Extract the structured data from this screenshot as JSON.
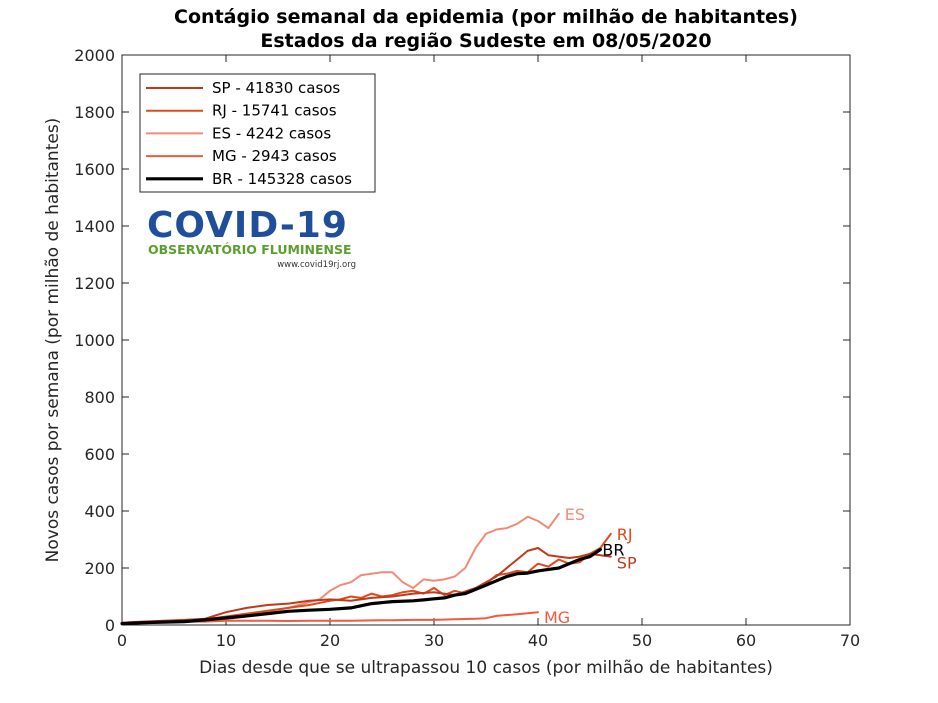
{
  "chart_data": {
    "type": "line",
    "title": "Contágio semanal da epidemia (por milhão de habitantes)",
    "subtitle": "Estados da região Sudeste  em 08/05/2020",
    "xlabel": "Dias desde que se ultrapassou 10 casos (por milhão de habitantes)",
    "ylabel": "Novos casos por semana (por milhão de habitantes)",
    "xlim": [
      0,
      70
    ],
    "ylim": [
      0,
      2000
    ],
    "xticks": [
      0,
      10,
      20,
      30,
      40,
      50,
      60,
      70
    ],
    "yticks": [
      0,
      200,
      400,
      600,
      800,
      1000,
      1200,
      1400,
      1600,
      1800,
      2000
    ],
    "grid": false,
    "legend_position": "top-left",
    "series": [
      {
        "name": "SP - 41830 casos",
        "end_label": "SP",
        "color": "#c0391b",
        "x": [
          0,
          2,
          4,
          6,
          8,
          10,
          12,
          14,
          16,
          18,
          20,
          22,
          24,
          26,
          28,
          30,
          32,
          34,
          36,
          38,
          39,
          40,
          41,
          42,
          43,
          44,
          45,
          46,
          47
        ],
        "y": [
          8,
          12,
          15,
          18,
          22,
          45,
          60,
          70,
          75,
          85,
          90,
          85,
          95,
          100,
          110,
          115,
          105,
          130,
          170,
          230,
          260,
          270,
          245,
          240,
          235,
          240,
          250,
          245,
          240
        ]
      },
      {
        "name": "RJ - 15741 casos",
        "end_label": "RJ",
        "color": "#e04a1a",
        "x": [
          0,
          2,
          4,
          6,
          8,
          10,
          12,
          14,
          16,
          18,
          20,
          21,
          22,
          23,
          24,
          25,
          26,
          27,
          28,
          29,
          30,
          31,
          32,
          33,
          34,
          35,
          36,
          37,
          38,
          39,
          40,
          41,
          42,
          43,
          44,
          45,
          46,
          47
        ],
        "y": [
          5,
          8,
          12,
          15,
          20,
          30,
          40,
          50,
          60,
          70,
          85,
          90,
          100,
          95,
          110,
          100,
          105,
          115,
          120,
          110,
          130,
          105,
          120,
          110,
          125,
          145,
          175,
          180,
          190,
          185,
          215,
          205,
          230,
          215,
          220,
          250,
          270,
          320
        ]
      },
      {
        "name": "ES - 4242 casos",
        "end_label": "ES",
        "color": "#f38a78",
        "x": [
          0,
          2,
          4,
          6,
          8,
          10,
          12,
          14,
          16,
          17,
          18,
          19,
          20,
          21,
          22,
          23,
          24,
          25,
          26,
          27,
          28,
          29,
          30,
          31,
          32,
          33,
          34,
          35,
          36,
          37,
          38,
          39,
          40,
          41,
          42
        ],
        "y": [
          5,
          8,
          10,
          12,
          15,
          20,
          30,
          45,
          60,
          70,
          80,
          90,
          120,
          140,
          150,
          175,
          180,
          185,
          185,
          150,
          130,
          160,
          155,
          160,
          170,
          200,
          270,
          320,
          335,
          340,
          355,
          380,
          365,
          340,
          390
        ]
      },
      {
        "name": "MG - 2943 casos",
        "end_label": "MG",
        "color": "#f25a40",
        "x": [
          0,
          2,
          4,
          6,
          8,
          10,
          12,
          14,
          16,
          18,
          20,
          22,
          24,
          26,
          28,
          30,
          32,
          34,
          35,
          36,
          38,
          40
        ],
        "y": [
          5,
          8,
          10,
          12,
          12,
          15,
          15,
          15,
          14,
          15,
          15,
          15,
          16,
          17,
          18,
          18,
          20,
          22,
          24,
          32,
          38,
          45
        ]
      },
      {
        "name": "BR - 145328 casos",
        "end_label": "BR",
        "color": "#000000",
        "x": [
          0,
          2,
          4,
          6,
          8,
          10,
          12,
          14,
          16,
          18,
          20,
          22,
          24,
          26,
          28,
          29,
          30,
          31,
          32,
          33,
          34,
          35,
          36,
          37,
          38,
          39,
          40,
          41,
          42,
          43,
          44,
          45,
          46
        ],
        "y": [
          5,
          8,
          10,
          12,
          18,
          25,
          32,
          40,
          48,
          52,
          55,
          60,
          75,
          82,
          85,
          88,
          92,
          95,
          105,
          110,
          125,
          140,
          155,
          170,
          180,
          182,
          190,
          195,
          200,
          215,
          230,
          240,
          265
        ]
      }
    ]
  },
  "logo": {
    "title": "COVID-19",
    "subtitle": "OBSERVATÓRIO FLUMINENSE",
    "url": "www.covid19rj.org"
  }
}
